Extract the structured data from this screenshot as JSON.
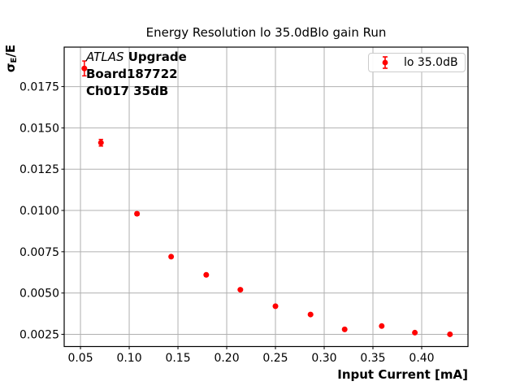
{
  "figure": {
    "title": "Energy Resolution lo 35.0dBlo gain Run",
    "background_color": "#ffffff"
  },
  "axes": {
    "xlabel": "Input Current [mA]",
    "ylabel": {
      "sigma": "σ",
      "subscript": "E",
      "rest": "/E"
    }
  },
  "annotation": {
    "line1_italic": "ATLAS",
    "line1_bold": " Upgrade",
    "line2": "Board187722",
    "line3": "Ch017 35dB"
  },
  "legend": {
    "label": "lo 35.0dB",
    "marker_color": "#ff0000",
    "border_color": "#cccccc"
  },
  "chart_data": {
    "type": "scatter",
    "title": "Energy Resolution lo 35.0dBlo gain Run",
    "xlabel": "Input Current [mA]",
    "ylabel": "σ_E/E",
    "xlim": [
      0.0333,
      0.4475
    ],
    "ylim": [
      0.00176,
      0.01989
    ],
    "grid": true,
    "grid_color": "#b0b0b0",
    "spine_color": "#000000",
    "tick_label_color": "#000000",
    "legend_position": "upper right",
    "xticks": {
      "values": [
        0.05,
        0.1,
        0.15,
        0.2,
        0.25,
        0.3,
        0.35,
        0.4
      ],
      "labels": [
        "0.05",
        "0.10",
        "0.15",
        "0.20",
        "0.25",
        "0.30",
        "0.35",
        "0.40"
      ]
    },
    "yticks": {
      "values": [
        0.0025,
        0.005,
        0.0075,
        0.01,
        0.0125,
        0.015,
        0.0175
      ],
      "labels": [
        "0.0025",
        "0.0050",
        "0.0075",
        "0.0100",
        "0.0125",
        "0.0150",
        "0.0175"
      ]
    },
    "series": [
      {
        "name": "lo 35.0dB",
        "marker": "circle",
        "color": "#ff0000",
        "x": [
          0.054,
          0.071,
          0.108,
          0.143,
          0.179,
          0.214,
          0.25,
          0.286,
          0.321,
          0.359,
          0.393,
          0.429
        ],
        "y": [
          0.0186,
          0.0141,
          0.0098,
          0.0072,
          0.0061,
          0.0052,
          0.0042,
          0.0037,
          0.0028,
          0.003,
          0.0026,
          0.0025
        ],
        "yerr": [
          0.00045,
          0.0002,
          0.0001,
          8e-05,
          8e-05,
          6e-05,
          6e-05,
          6e-05,
          5e-05,
          5e-05,
          5e-05,
          5e-05
        ]
      }
    ]
  }
}
